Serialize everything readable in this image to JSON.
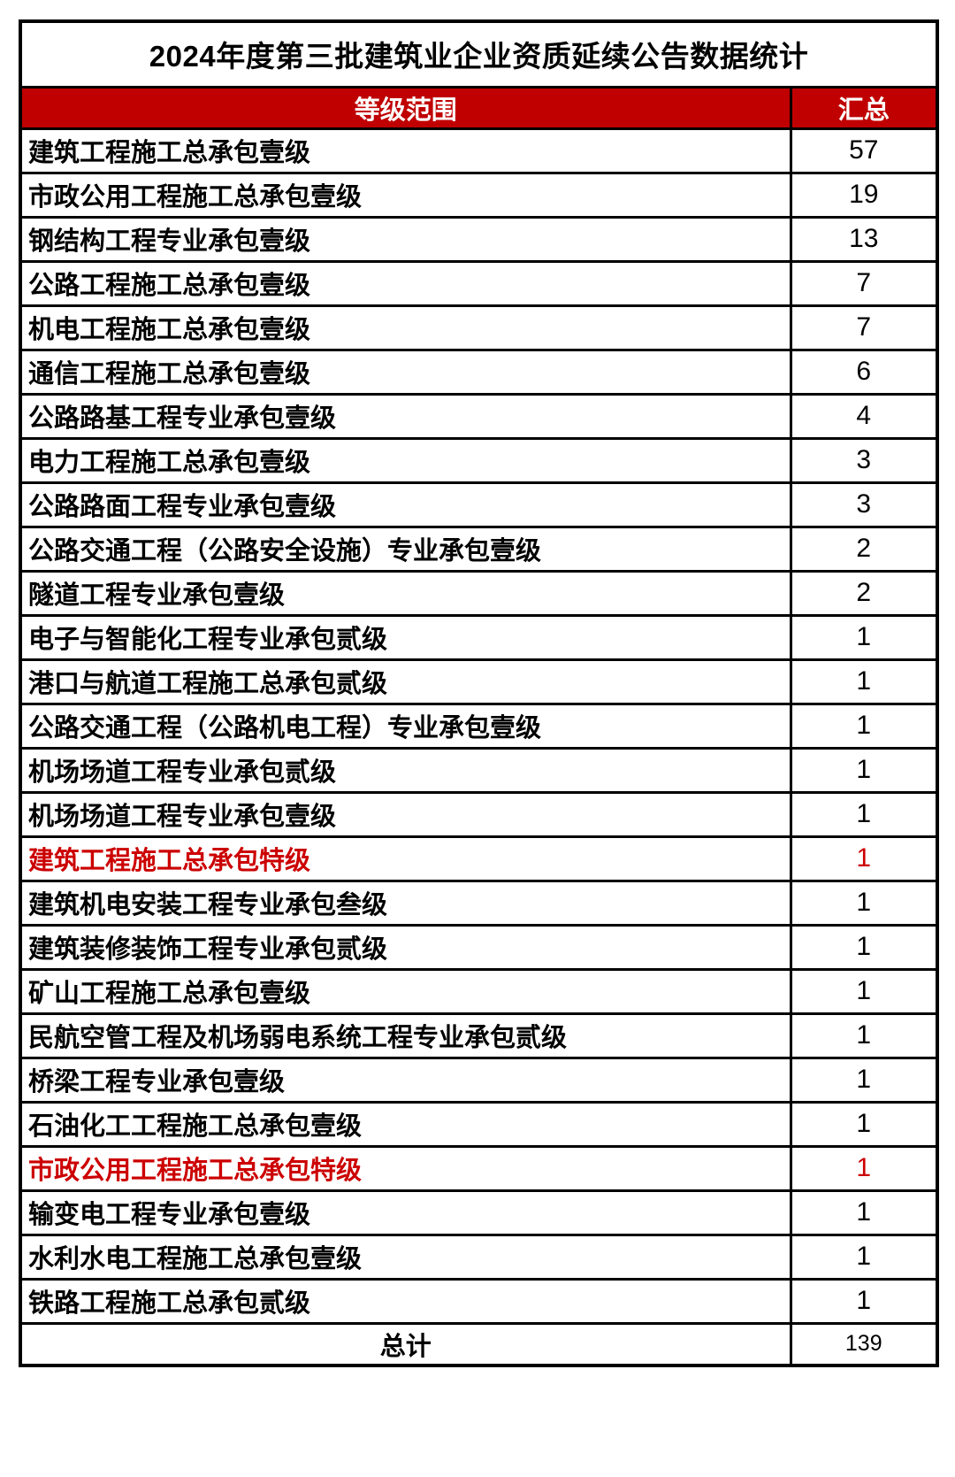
{
  "title": "2024年度第三批建筑业企业资质延续公告数据统计",
  "colors": {
    "header_bg": "#C00000",
    "highlight_text": "#CC0000",
    "border": "#000000"
  },
  "table": {
    "headers": [
      "等级范围",
      "汇总"
    ],
    "rows": [
      {
        "label": "建筑工程施工总承包壹级",
        "value": 57,
        "highlight": false
      },
      {
        "label": "市政公用工程施工总承包壹级",
        "value": 19,
        "highlight": false
      },
      {
        "label": "钢结构工程专业承包壹级",
        "value": 13,
        "highlight": false
      },
      {
        "label": "公路工程施工总承包壹级",
        "value": 7,
        "highlight": false
      },
      {
        "label": "机电工程施工总承包壹级",
        "value": 7,
        "highlight": false
      },
      {
        "label": "通信工程施工总承包壹级",
        "value": 6,
        "highlight": false
      },
      {
        "label": "公路路基工程专业承包壹级",
        "value": 4,
        "highlight": false
      },
      {
        "label": "电力工程施工总承包壹级",
        "value": 3,
        "highlight": false
      },
      {
        "label": "公路路面工程专业承包壹级",
        "value": 3,
        "highlight": false
      },
      {
        "label": "公路交通工程（公路安全设施）专业承包壹级",
        "value": 2,
        "highlight": false
      },
      {
        "label": "隧道工程专业承包壹级",
        "value": 2,
        "highlight": false
      },
      {
        "label": "电子与智能化工程专业承包贰级",
        "value": 1,
        "highlight": false
      },
      {
        "label": "港口与航道工程施工总承包贰级",
        "value": 1,
        "highlight": false
      },
      {
        "label": "公路交通工程（公路机电工程）专业承包壹级",
        "value": 1,
        "highlight": false
      },
      {
        "label": "机场场道工程专业承包贰级",
        "value": 1,
        "highlight": false
      },
      {
        "label": "机场场道工程专业承包壹级",
        "value": 1,
        "highlight": false
      },
      {
        "label": "建筑工程施工总承包特级",
        "value": 1,
        "highlight": true
      },
      {
        "label": "建筑机电安装工程专业承包叁级",
        "value": 1,
        "highlight": false
      },
      {
        "label": "建筑装修装饰工程专业承包贰级",
        "value": 1,
        "highlight": false
      },
      {
        "label": "矿山工程施工总承包壹级",
        "value": 1,
        "highlight": false
      },
      {
        "label": "民航空管工程及机场弱电系统工程专业承包贰级",
        "value": 1,
        "highlight": false
      },
      {
        "label": "桥梁工程专业承包壹级",
        "value": 1,
        "highlight": false
      },
      {
        "label": "石油化工工程施工总承包壹级",
        "value": 1,
        "highlight": false
      },
      {
        "label": "市政公用工程施工总承包特级",
        "value": 1,
        "highlight": true
      },
      {
        "label": "输变电工程专业承包壹级",
        "value": 1,
        "highlight": false
      },
      {
        "label": "水利水电工程施工总承包壹级",
        "value": 1,
        "highlight": false
      },
      {
        "label": "铁路工程施工总承包贰级",
        "value": 1,
        "highlight": false
      }
    ],
    "total": {
      "label": "总计",
      "value": 139
    }
  }
}
